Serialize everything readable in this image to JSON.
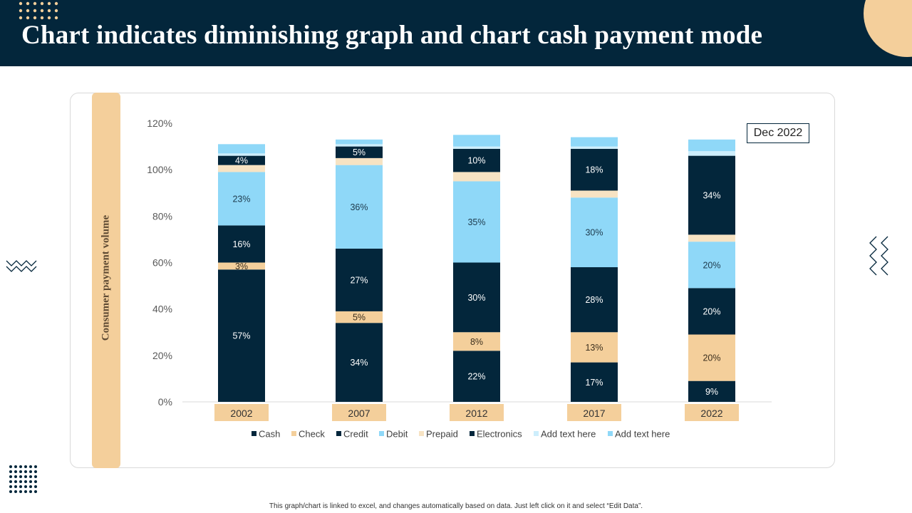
{
  "page": {
    "title": "Chart indicates diminishing graph and chart cash payment mode",
    "date_badge": "Dec 2022",
    "footnote": "This graph/chart is linked to excel, and changes automatically based on data. Just left click on it and select “Edit Data”.",
    "colors": {
      "header_bg": "#03263b",
      "accent": "#f4cf9b",
      "light_blue": "#8fd8f8",
      "dark_navy": "#03263b"
    },
    "icons": [
      "dot-grid-icon",
      "zigzag-icon"
    ]
  },
  "chart_data": {
    "type": "bar",
    "stacked": true,
    "title": "",
    "xlabel": "",
    "ylabel": "Consumer payment volume",
    "ylim": [
      0,
      120
    ],
    "y_ticks": [
      "0%",
      "20%",
      "40%",
      "60%",
      "80%",
      "100%",
      "120%"
    ],
    "categories": [
      "2002",
      "2007",
      "2012",
      "2017",
      "2022"
    ],
    "legend_position": "bottom",
    "series": [
      {
        "name": "Cash",
        "color": "#03263b",
        "values": [
          57,
          34,
          22,
          17,
          9
        ],
        "labels": [
          "57%",
          "34%",
          "22%",
          "17%",
          "9%"
        ]
      },
      {
        "name": "Check",
        "color": "#f4cf9b",
        "values": [
          3,
          5,
          8,
          13,
          20
        ],
        "labels": [
          "3%",
          "5%",
          "8%",
          "13%",
          "20%"
        ]
      },
      {
        "name": "Credit",
        "color": "#03263b",
        "values": [
          16,
          27,
          30,
          28,
          20
        ],
        "labels": [
          "16%",
          "27%",
          "30%",
          "28%",
          "20%"
        ]
      },
      {
        "name": "Debit",
        "color": "#8fd8f8",
        "values": [
          23,
          36,
          35,
          30,
          20
        ],
        "labels": [
          "23%",
          "36%",
          "35%",
          "30%",
          "20%"
        ]
      },
      {
        "name": "Prepaid",
        "color": "#f7e3c3",
        "values": [
          3,
          3,
          4,
          3,
          3
        ],
        "labels": [
          "",
          "",
          "",
          "",
          ""
        ]
      },
      {
        "name": "Electronics",
        "color": "#03263b",
        "values": [
          4,
          5,
          10,
          18,
          34
        ],
        "labels": [
          "4%",
          "5%",
          "10%",
          "18%",
          "34%"
        ]
      },
      {
        "name": "Add text here",
        "color": "#cdeefc",
        "values": [
          1,
          1,
          1,
          1,
          2
        ],
        "labels": [
          "",
          "",
          "",
          "",
          ""
        ]
      },
      {
        "name": "Add text here",
        "color": "#8fd8f8",
        "values": [
          4,
          2,
          5,
          4,
          5
        ],
        "labels": [
          "",
          "",
          "",
          "",
          ""
        ]
      }
    ]
  }
}
